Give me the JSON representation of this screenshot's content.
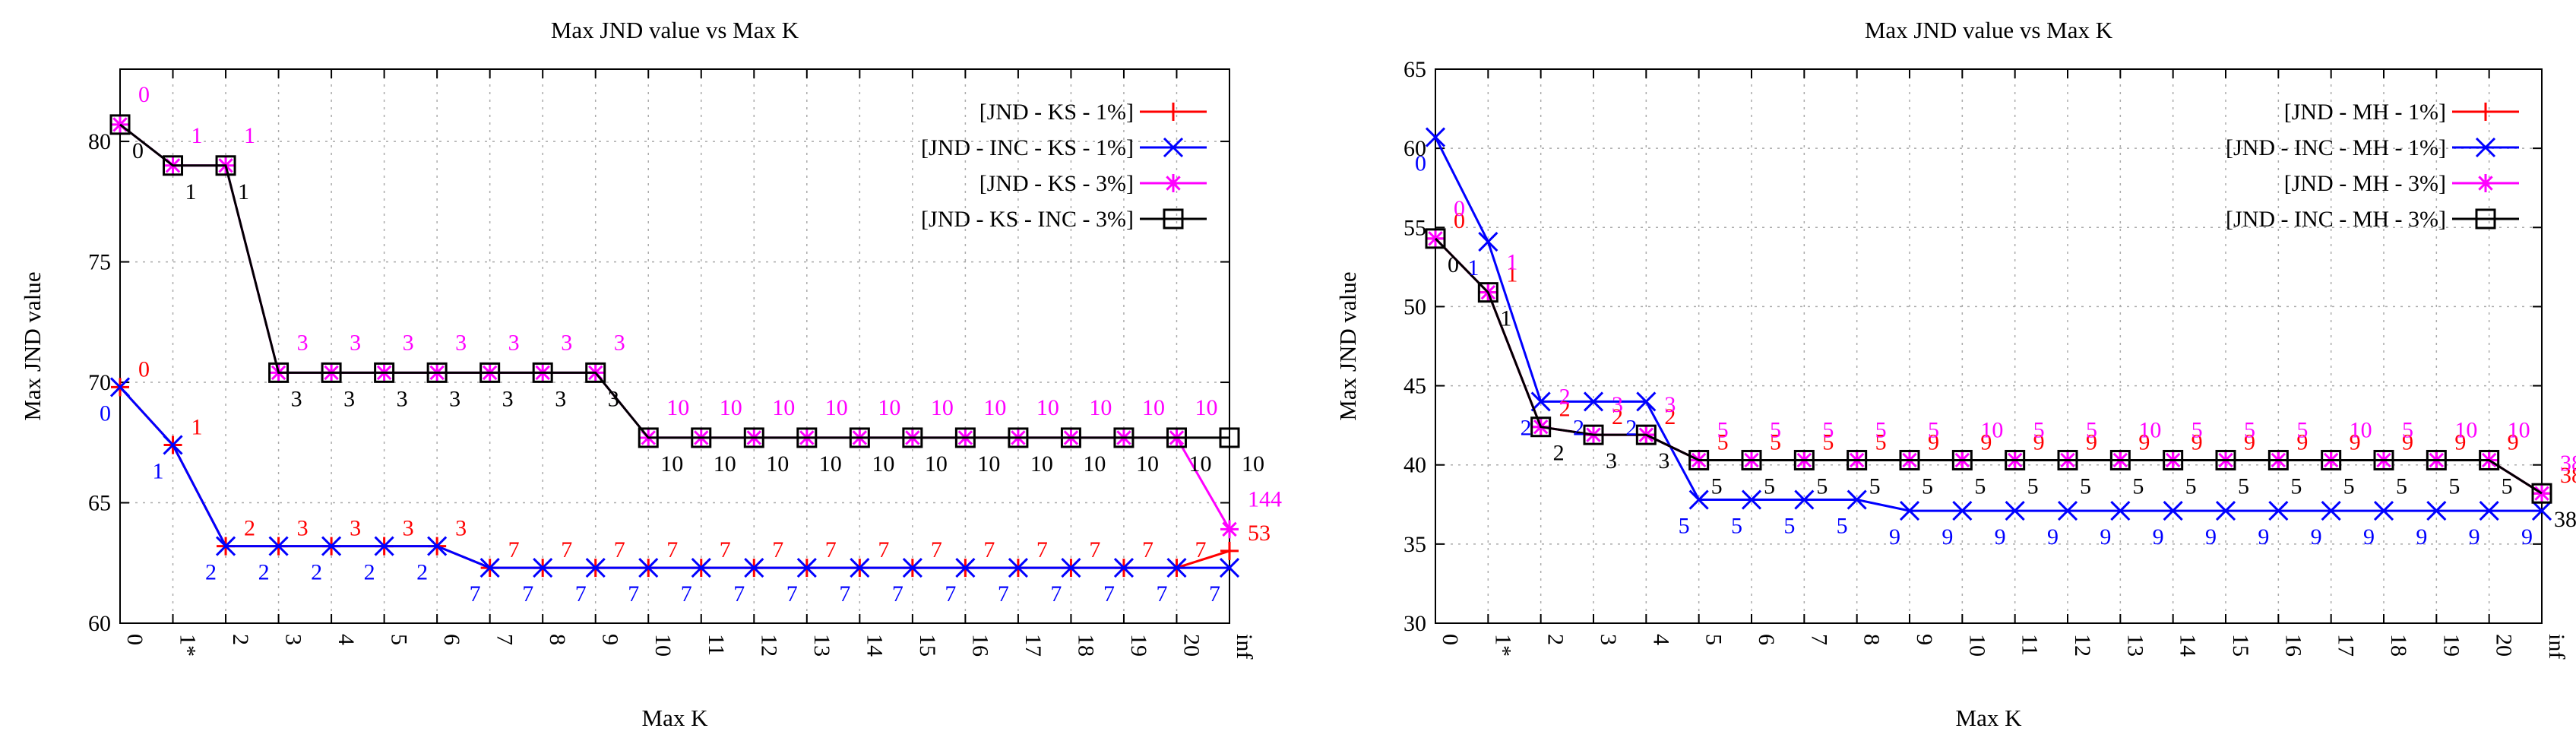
{
  "colors": {
    "s1": "#ff0000",
    "s2": "#0000ff",
    "s3": "#ff00ff",
    "s4": "#000000",
    "grid": "#aaaaaa"
  },
  "chart_data": [
    {
      "type": "line",
      "title": "Max JND value vs Max K",
      "xlabel": "Max K",
      "ylabel": "Max  JND  value",
      "categories": [
        "0",
        "1*",
        "2",
        "3",
        "4",
        "5",
        "6",
        "7",
        "8",
        "9",
        "10",
        "11",
        "12",
        "13",
        "14",
        "15",
        "16",
        "17",
        "18",
        "19",
        "20",
        "inf"
      ],
      "ylim": [
        60,
        83
      ],
      "yticks": [
        60,
        65,
        70,
        75,
        80
      ],
      "legend_position": "top-right",
      "series": [
        {
          "name": "[JND - KS - 1%]",
          "color": "#ff0000",
          "marker": "plus",
          "values": [
            69.8,
            67.4,
            63.2,
            63.2,
            63.2,
            63.2,
            63.2,
            62.3,
            62.3,
            62.3,
            62.3,
            62.3,
            62.3,
            62.3,
            62.3,
            62.3,
            62.3,
            62.3,
            62.3,
            62.3,
            62.3,
            63.0
          ],
          "labels": [
            "0",
            "1",
            "2",
            "3",
            "3",
            "3",
            "3",
            "7",
            "7",
            "7",
            "7",
            "7",
            "7",
            "7",
            "7",
            "7",
            "7",
            "7",
            "7",
            "7",
            "7",
            "53"
          ]
        },
        {
          "name": "[JND - INC - KS - 1%]",
          "color": "#0000ff",
          "marker": "x",
          "values": [
            69.8,
            67.4,
            63.2,
            63.2,
            63.2,
            63.2,
            63.2,
            62.3,
            62.3,
            62.3,
            62.3,
            62.3,
            62.3,
            62.3,
            62.3,
            62.3,
            62.3,
            62.3,
            62.3,
            62.3,
            62.3,
            62.3
          ],
          "labels": [
            "0",
            "1",
            "2",
            "2",
            "2",
            "2",
            "2",
            "7",
            "7",
            "7",
            "7",
            "7",
            "7",
            "7",
            "7",
            "7",
            "7",
            "7",
            "7",
            "7",
            "7",
            "7"
          ]
        },
        {
          "name": "[JND - KS - 3%]",
          "color": "#ff00ff",
          "marker": "star",
          "values": [
            80.7,
            79.0,
            79.0,
            70.4,
            70.4,
            70.4,
            70.4,
            70.4,
            70.4,
            70.4,
            67.7,
            67.7,
            67.7,
            67.7,
            67.7,
            67.7,
            67.7,
            67.7,
            67.7,
            67.7,
            67.7,
            63.9
          ],
          "labels": [
            "0",
            "1",
            "1",
            "3",
            "3",
            "3",
            "3",
            "3",
            "3",
            "3",
            "10",
            "10",
            "10",
            "10",
            "10",
            "10",
            "10",
            "10",
            "10",
            "10",
            "10",
            "144"
          ]
        },
        {
          "name": "[JND - KS - INC - 3%]",
          "color": "#000000",
          "marker": "square",
          "values": [
            80.7,
            79.0,
            79.0,
            70.4,
            70.4,
            70.4,
            70.4,
            70.4,
            70.4,
            70.4,
            67.7,
            67.7,
            67.7,
            67.7,
            67.7,
            67.7,
            67.7,
            67.7,
            67.7,
            67.7,
            67.7,
            67.7
          ],
          "labels": [
            "0",
            "1",
            "1",
            "3",
            "3",
            "3",
            "3",
            "3",
            "3",
            "3",
            "10",
            "10",
            "10",
            "10",
            "10",
            "10",
            "10",
            "10",
            "10",
            "10",
            "10",
            "10"
          ]
        }
      ]
    },
    {
      "type": "line",
      "title": "Max JND value vs Max K",
      "xlabel": "Max K",
      "ylabel": "Max  JND  value",
      "categories": [
        "0",
        "1*",
        "2",
        "3",
        "4",
        "5",
        "6",
        "7",
        "8",
        "9",
        "10",
        "11",
        "12",
        "13",
        "14",
        "15",
        "16",
        "17",
        "18",
        "19",
        "20",
        "inf"
      ],
      "ylim": [
        30,
        65
      ],
      "yticks": [
        30,
        35,
        40,
        45,
        50,
        55,
        60,
        65
      ],
      "legend_position": "top-right",
      "series": [
        {
          "name": "[JND - MH - 1%]",
          "color": "#ff0000",
          "marker": "plus",
          "values": [
            54.3,
            50.9,
            42.4,
            41.9,
            41.9,
            40.3,
            40.3,
            40.3,
            40.3,
            40.3,
            40.3,
            40.3,
            40.3,
            40.3,
            40.3,
            40.3,
            40.3,
            40.3,
            40.3,
            40.3,
            40.3,
            38.2
          ],
          "labels": [
            "0",
            "1",
            "2",
            "2",
            "2",
            "5",
            "5",
            "5",
            "5",
            "9",
            "9",
            "9",
            "9",
            "9",
            "9",
            "9",
            "9",
            "9",
            "9",
            "9",
            "9",
            "38"
          ]
        },
        {
          "name": "[JND - INC - MH - 1%]",
          "color": "#0000ff",
          "marker": "x",
          "values": [
            60.7,
            54.1,
            44.0,
            44.0,
            44.0,
            37.8,
            37.8,
            37.8,
            37.8,
            37.1,
            37.1,
            37.1,
            37.1,
            37.1,
            37.1,
            37.1,
            37.1,
            37.1,
            37.1,
            37.1,
            37.1,
            37.1
          ],
          "labels": [
            "0",
            "1",
            "2",
            "2",
            "2",
            "5",
            "5",
            "5",
            "5",
            "9",
            "9",
            "9",
            "9",
            "9",
            "9",
            "9",
            "9",
            "9",
            "9",
            "9",
            "9",
            "9"
          ]
        },
        {
          "name": "[JND - MH - 3%]",
          "color": "#ff00ff",
          "marker": "star",
          "values": [
            54.3,
            50.9,
            42.4,
            41.9,
            41.9,
            40.3,
            40.3,
            40.3,
            40.3,
            40.3,
            40.3,
            40.3,
            40.3,
            40.3,
            40.3,
            40.3,
            40.3,
            40.3,
            40.3,
            40.3,
            40.3,
            38.2
          ],
          "labels": [
            "0",
            "1",
            "2",
            "3",
            "3",
            "5",
            "5",
            "5",
            "5",
            "5",
            "10",
            "5",
            "5",
            "10",
            "5",
            "5",
            "5",
            "10",
            "5",
            "10",
            "10",
            "38"
          ]
        },
        {
          "name": "[JND - INC - MH - 3%]",
          "color": "#000000",
          "marker": "square",
          "values": [
            54.3,
            50.9,
            42.4,
            41.9,
            41.9,
            40.3,
            40.3,
            40.3,
            40.3,
            40.3,
            40.3,
            40.3,
            40.3,
            40.3,
            40.3,
            40.3,
            40.3,
            40.3,
            40.3,
            40.3,
            40.3,
            38.2
          ],
          "labels": [
            "0",
            "1",
            "2",
            "3",
            "3",
            "5",
            "5",
            "5",
            "5",
            "5",
            "5",
            "5",
            "5",
            "5",
            "5",
            "5",
            "5",
            "5",
            "5",
            "5",
            "5",
            "38"
          ]
        }
      ]
    }
  ]
}
